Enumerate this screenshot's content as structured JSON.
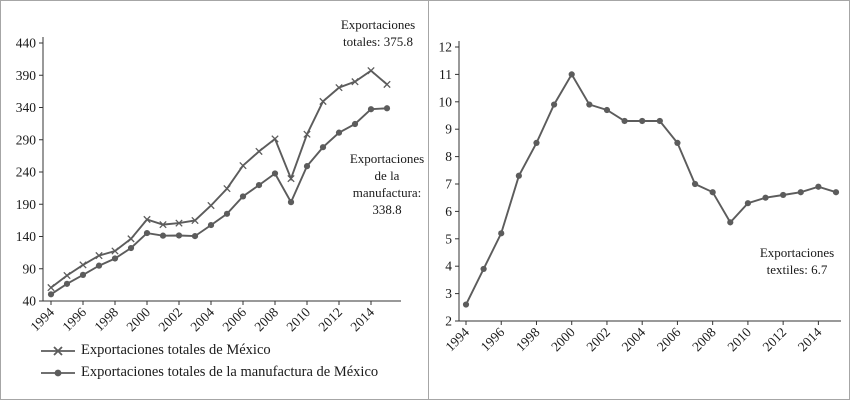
{
  "figure": {
    "background": "#ffffff",
    "border_color": "#a6a6a6",
    "text_color": "#1a1a1a",
    "series_color": "#5c5c5c"
  },
  "chart_data": [
    {
      "type": "line",
      "title": "",
      "xlabel": "",
      "ylabel": "",
      "grid": false,
      "legend_position": "bottom-left",
      "x": [
        1994,
        1995,
        1996,
        1997,
        1998,
        1999,
        2000,
        2001,
        2002,
        2003,
        2004,
        2005,
        2006,
        2007,
        2008,
        2009,
        2010,
        2011,
        2012,
        2013,
        2014,
        2015
      ],
      "x_tick_labels": [
        "1994",
        "1996",
        "1998",
        "2000",
        "2002",
        "2004",
        "2006",
        "2008",
        "2010",
        "2012",
        "2014"
      ],
      "ylim": [
        40,
        440
      ],
      "y_ticks": [
        40,
        90,
        140,
        190,
        240,
        290,
        340,
        390,
        440
      ],
      "series": [
        {
          "name": "Exportaciones totales de México",
          "marker": "x",
          "values": [
            60.8,
            79.5,
            96.0,
            110.4,
            117.5,
            136.4,
            166.4,
            158.4,
            160.7,
            164.8,
            188.0,
            214.2,
            249.9,
            271.9,
            291.3,
            229.7,
            298.5,
            349.4,
            370.8,
            380.0,
            397.1,
            375.8
          ]
        },
        {
          "name": "Exportaciones totales de la manufactura de México",
          "marker": "circle",
          "values": [
            50.4,
            66.6,
            80.5,
            94.8,
            105.9,
            122.1,
            145.3,
            141.3,
            141.6,
            140.6,
            157.7,
            175.2,
            202.1,
            219.7,
            237.7,
            193.3,
            249.1,
            278.5,
            301.0,
            314.4,
            337.3,
            338.8
          ]
        }
      ],
      "annotations": [
        {
          "text": "Exportaciones totales: 375.8"
        },
        {
          "text": "Exportaciones de la manufactura: 338.8"
        }
      ]
    },
    {
      "type": "line",
      "title": "",
      "xlabel": "",
      "ylabel": "",
      "grid": false,
      "legend_position": "none",
      "x": [
        1994,
        1995,
        1996,
        1997,
        1998,
        1999,
        2000,
        2001,
        2002,
        2003,
        2004,
        2005,
        2006,
        2007,
        2008,
        2009,
        2010,
        2011,
        2012,
        2013,
        2014,
        2015
      ],
      "x_tick_labels": [
        "1994",
        "1996",
        "1998",
        "2000",
        "2002",
        "2004",
        "2006",
        "2008",
        "2010",
        "2012",
        "2014"
      ],
      "ylim": [
        2,
        12
      ],
      "y_ticks": [
        2,
        3,
        4,
        5,
        6,
        7,
        8,
        9,
        10,
        11,
        12
      ],
      "series": [
        {
          "name": "Exportaciones textiles",
          "marker": "circle",
          "values": [
            2.6,
            3.9,
            5.2,
            7.3,
            8.5,
            9.9,
            11.0,
            9.9,
            9.7,
            9.3,
            9.3,
            9.3,
            8.5,
            7.0,
            6.7,
            5.6,
            6.3,
            6.5,
            6.6,
            6.7,
            6.9,
            6.7
          ]
        }
      ],
      "annotations": [
        {
          "text": "Exportaciones textiles: 6.7"
        }
      ]
    }
  ]
}
